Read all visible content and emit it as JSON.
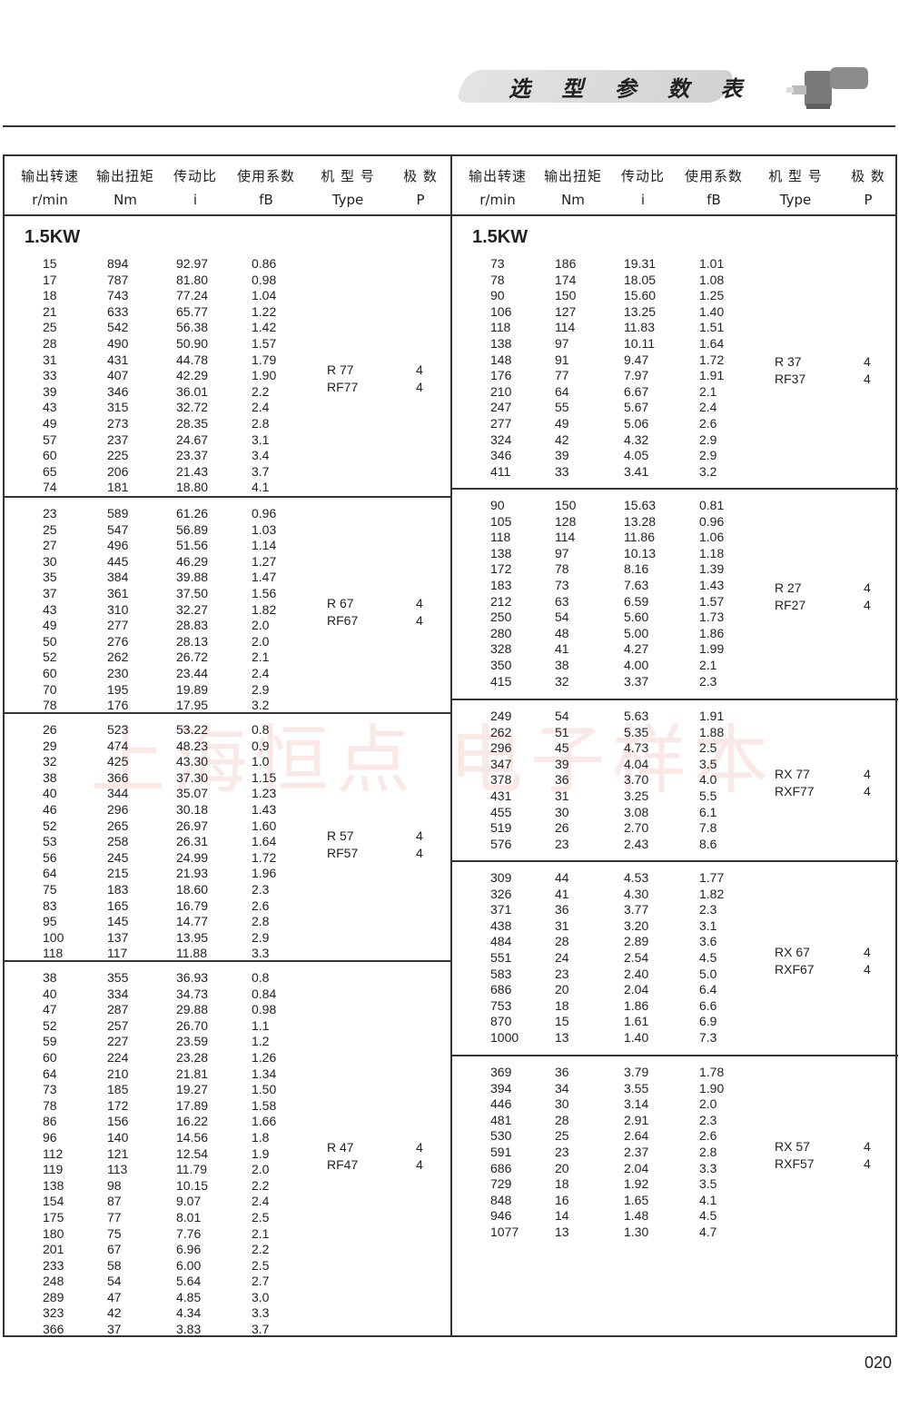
{
  "banner": {
    "title": "选 型 参 数 表"
  },
  "header": {
    "cols_zh": [
      "输出转速",
      "输出扭矩",
      "传动比",
      "使用系数",
      "机 型 号",
      "极  数"
    ],
    "cols_en": [
      "r/min",
      "Nm",
      "i",
      "fB",
      "Type",
      "P"
    ]
  },
  "watermark": "上海恒点  电子样本",
  "page_number": "020",
  "left": {
    "power": "1.5KW",
    "groups": [
      {
        "type": [
          "R  77",
          "RF77"
        ],
        "poles": [
          "4",
          "4"
        ],
        "rows": [
          [
            "15",
            "894",
            "92.97",
            "0.86"
          ],
          [
            "17",
            "787",
            "81.80",
            "0.98"
          ],
          [
            "18",
            "743",
            "77.24",
            "1.04"
          ],
          [
            "21",
            "633",
            "65.77",
            "1.22"
          ],
          [
            "25",
            "542",
            "56.38",
            "1.42"
          ],
          [
            "28",
            "490",
            "50.90",
            "1.57"
          ],
          [
            "31",
            "431",
            "44.78",
            "1.79"
          ],
          [
            "33",
            "407",
            "42.29",
            "1.90"
          ],
          [
            "39",
            "346",
            "36.01",
            "2.2"
          ],
          [
            "43",
            "315",
            "32.72",
            "2.4"
          ],
          [
            "49",
            "273",
            "28.35",
            "2.8"
          ],
          [
            "57",
            "237",
            "24.67",
            "3.1"
          ],
          [
            "60",
            "225",
            "23.37",
            "3.4"
          ],
          [
            "65",
            "206",
            "21.43",
            "3.7"
          ],
          [
            "74",
            "181",
            "18.80",
            "4.1"
          ]
        ]
      },
      {
        "type": [
          "R  67",
          "RF67"
        ],
        "poles": [
          "4",
          "4"
        ],
        "rows": [
          [
            "23",
            "589",
            "61.26",
            "0.96"
          ],
          [
            "25",
            "547",
            "56.89",
            "1.03"
          ],
          [
            "27",
            "496",
            "51.56",
            "1.14"
          ],
          [
            "30",
            "445",
            "46.29",
            "1.27"
          ],
          [
            "35",
            "384",
            "39.88",
            "1.47"
          ],
          [
            "37",
            "361",
            "37.50",
            "1.56"
          ],
          [
            "43",
            "310",
            "32.27",
            "1.82"
          ],
          [
            "49",
            "277",
            "28.83",
            "2.0"
          ],
          [
            "50",
            "276",
            "28.13",
            "2.0"
          ],
          [
            "52",
            "262",
            "26.72",
            "2.1"
          ],
          [
            "60",
            "230",
            "23.44",
            "2.4"
          ],
          [
            "70",
            "195",
            "19.89",
            "2.9"
          ],
          [
            "78",
            "176",
            "17.95",
            "3.2"
          ]
        ]
      },
      {
        "type": [
          "R  57",
          "RF57"
        ],
        "poles": [
          "4",
          "4"
        ],
        "rows": [
          [
            "26",
            "523",
            "53.22",
            "0.8"
          ],
          [
            "29",
            "474",
            "48.23",
            "0.9"
          ],
          [
            "32",
            "425",
            "43.30",
            "1.0"
          ],
          [
            "38",
            "366",
            "37.30",
            "1.15"
          ],
          [
            "40",
            "344",
            "35.07",
            "1.23"
          ],
          [
            "46",
            "296",
            "30.18",
            "1.43"
          ],
          [
            "52",
            "265",
            "26.97",
            "1.60"
          ],
          [
            "53",
            "258",
            "26.31",
            "1.64"
          ],
          [
            "56",
            "245",
            "24.99",
            "1.72"
          ],
          [
            "64",
            "215",
            "21.93",
            "1.96"
          ],
          [
            "75",
            "183",
            "18.60",
            "2.3"
          ],
          [
            "83",
            "165",
            "16.79",
            "2.6"
          ],
          [
            "95",
            "145",
            "14.77",
            "2.8"
          ],
          [
            "100",
            "137",
            "13.95",
            "2.9"
          ],
          [
            "118",
            "117",
            "11.88",
            "3.3"
          ]
        ]
      },
      {
        "type": [
          "R  47",
          "RF47"
        ],
        "poles": [
          "4",
          "4"
        ],
        "rows": [
          [
            "38",
            "355",
            "36.93",
            "0.8"
          ],
          [
            "40",
            "334",
            "34.73",
            "0.84"
          ],
          [
            "47",
            "287",
            "29.88",
            "0.98"
          ],
          [
            "52",
            "257",
            "26.70",
            "1.1"
          ],
          [
            "59",
            "227",
            "23.59",
            "1.2"
          ],
          [
            "60",
            "224",
            "23.28",
            "1.26"
          ],
          [
            "64",
            "210",
            "21.81",
            "1.34"
          ],
          [
            "73",
            "185",
            "19.27",
            "1.50"
          ],
          [
            "78",
            "172",
            "17.89",
            "1.58"
          ],
          [
            "86",
            "156",
            "16.22",
            "1.66"
          ],
          [
            "96",
            "140",
            "14.56",
            "1.8"
          ],
          [
            "112",
            "121",
            "12.54",
            "1.9"
          ],
          [
            "119",
            "113",
            "11.79",
            "2.0"
          ],
          [
            "138",
            "98",
            "10.15",
            "2.2"
          ],
          [
            "154",
            "87",
            "9.07",
            "2.4"
          ],
          [
            "175",
            "77",
            "8.01",
            "2.5"
          ],
          [
            "180",
            "75",
            "7.76",
            "2.1"
          ],
          [
            "201",
            "67",
            "6.96",
            "2.2"
          ],
          [
            "233",
            "58",
            "6.00",
            "2.5"
          ],
          [
            "248",
            "54",
            "5.64",
            "2.7"
          ],
          [
            "289",
            "47",
            "4.85",
            "3.0"
          ],
          [
            "323",
            "42",
            "4.34",
            "3.3"
          ],
          [
            "366",
            "37",
            "3.83",
            "3.7"
          ]
        ]
      }
    ]
  },
  "right": {
    "power": "1.5KW",
    "groups": [
      {
        "type": [
          "R  37",
          "RF37"
        ],
        "poles": [
          "4",
          "4"
        ],
        "rows": [
          [
            "73",
            "186",
            "19.31",
            "1.01"
          ],
          [
            "78",
            "174",
            "18.05",
            "1.08"
          ],
          [
            "90",
            "150",
            "15.60",
            "1.25"
          ],
          [
            "106",
            "127",
            "13.25",
            "1.40"
          ],
          [
            "118",
            "114",
            "11.83",
            "1.51"
          ],
          [
            "138",
            "97",
            "10.11",
            "1.64"
          ],
          [
            "148",
            "91",
            "9.47",
            "1.72"
          ],
          [
            "176",
            "77",
            "7.97",
            "1.91"
          ],
          [
            "210",
            "64",
            "6.67",
            "2.1"
          ],
          [
            "247",
            "55",
            "5.67",
            "2.4"
          ],
          [
            "277",
            "49",
            "5.06",
            "2.6"
          ],
          [
            "324",
            "42",
            "4.32",
            "2.9"
          ],
          [
            "346",
            "39",
            "4.05",
            "2.9"
          ],
          [
            "411",
            "33",
            "3.41",
            "3.2"
          ]
        ]
      },
      {
        "type": [
          "R  27",
          "RF27"
        ],
        "poles": [
          "4",
          "4"
        ],
        "rows": [
          [
            "90",
            "150",
            "15.63",
            "0.81"
          ],
          [
            "105",
            "128",
            "13.28",
            "0.96"
          ],
          [
            "118",
            "114",
            "11.86",
            "1.06"
          ],
          [
            "138",
            "97",
            "10.13",
            "1.18"
          ],
          [
            "172",
            "78",
            "8.16",
            "1.39"
          ],
          [
            "183",
            "73",
            "7.63",
            "1.43"
          ],
          [
            "212",
            "63",
            "6.59",
            "1.57"
          ],
          [
            "250",
            "54",
            "5.60",
            "1.73"
          ],
          [
            "280",
            "48",
            "5.00",
            "1.86"
          ],
          [
            "328",
            "41",
            "4.27",
            "1.99"
          ],
          [
            "350",
            "38",
            "4.00",
            "2.1"
          ],
          [
            "415",
            "32",
            "3.37",
            "2.3"
          ]
        ]
      },
      {
        "type": [
          "RX  77",
          "RXF77"
        ],
        "poles": [
          "4",
          "4"
        ],
        "rows": [
          [
            "249",
            "54",
            "5.63",
            "1.91"
          ],
          [
            "262",
            "51",
            "5.35",
            "1.88"
          ],
          [
            "296",
            "45",
            "4.73",
            "2.5"
          ],
          [
            "347",
            "39",
            "4.04",
            "3.5"
          ],
          [
            "378",
            "36",
            "3.70",
            "4.0"
          ],
          [
            "431",
            "31",
            "3.25",
            "5.5"
          ],
          [
            "455",
            "30",
            "3.08",
            "6.1"
          ],
          [
            "519",
            "26",
            "2.70",
            "7.8"
          ],
          [
            "576",
            "23",
            "2.43",
            "8.6"
          ]
        ]
      },
      {
        "type": [
          "RX  67",
          "RXF67"
        ],
        "poles": [
          "4",
          "4"
        ],
        "rows": [
          [
            "309",
            "44",
            "4.53",
            "1.77"
          ],
          [
            "326",
            "41",
            "4.30",
            "1.82"
          ],
          [
            "371",
            "36",
            "3.77",
            "2.3"
          ],
          [
            "438",
            "31",
            "3.20",
            "3.1"
          ],
          [
            "484",
            "28",
            "2.89",
            "3.6"
          ],
          [
            "551",
            "24",
            "2.54",
            "4.5"
          ],
          [
            "583",
            "23",
            "2.40",
            "5.0"
          ],
          [
            "686",
            "20",
            "2.04",
            "6.4"
          ],
          [
            "753",
            "18",
            "1.86",
            "6.6"
          ],
          [
            "870",
            "15",
            "1.61",
            "6.9"
          ],
          [
            "1000",
            "13",
            "1.40",
            "7.3"
          ]
        ]
      },
      {
        "type": [
          "RX  57",
          "RXF57"
        ],
        "poles": [
          "4",
          "4"
        ],
        "rows": [
          [
            "369",
            "36",
            "3.79",
            "1.78"
          ],
          [
            "394",
            "34",
            "3.55",
            "1.90"
          ],
          [
            "446",
            "30",
            "3.14",
            "2.0"
          ],
          [
            "481",
            "28",
            "2.91",
            "2.3"
          ],
          [
            "530",
            "25",
            "2.64",
            "2.6"
          ],
          [
            "591",
            "23",
            "2.37",
            "2.8"
          ],
          [
            "686",
            "20",
            "2.04",
            "3.3"
          ],
          [
            "729",
            "18",
            "1.92",
            "3.5"
          ],
          [
            "848",
            "16",
            "1.65",
            "4.1"
          ],
          [
            "946",
            "14",
            "1.48",
            "4.5"
          ],
          [
            "1077",
            "13",
            "1.30",
            "4.7"
          ]
        ]
      }
    ]
  }
}
